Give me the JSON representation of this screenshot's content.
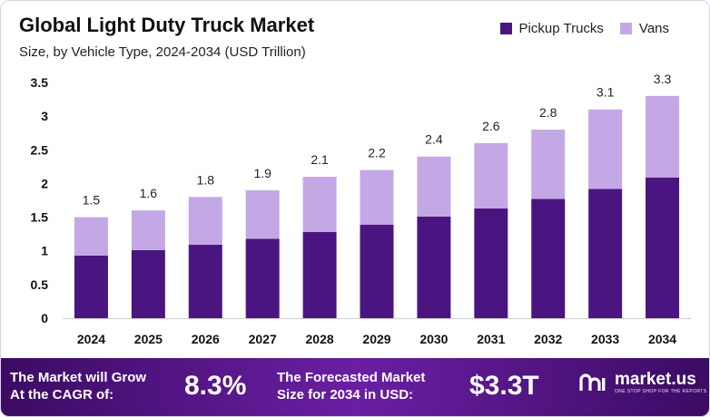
{
  "chart_data": {
    "type": "bar",
    "stacked": true,
    "title": "Global Light Duty Truck Market",
    "subtitle": "Size, by Vehicle Type, 2024-2034 (USD Trillion)",
    "categories": [
      "2024",
      "2025",
      "2026",
      "2027",
      "2028",
      "2029",
      "2030",
      "2031",
      "2032",
      "2033",
      "2034"
    ],
    "series": [
      {
        "name": "Pickup Trucks",
        "color": "#4a1580",
        "values": [
          0.93,
          1.01,
          1.09,
          1.18,
          1.28,
          1.39,
          1.51,
          1.63,
          1.77,
          1.92,
          2.09
        ]
      },
      {
        "name": "Vans",
        "color": "#c4a8e6",
        "values": [
          0.57,
          0.59,
          0.71,
          0.72,
          0.82,
          0.81,
          0.89,
          0.97,
          1.03,
          1.18,
          1.21
        ]
      }
    ],
    "totals": [
      "1.5",
      "1.6",
      "1.8",
      "1.9",
      "2.1",
      "2.2",
      "2.4",
      "2.6",
      "2.8",
      "3.1",
      "3.3"
    ],
    "y_ticks": [
      "0",
      "0.5",
      "1",
      "1.5",
      "2",
      "2.5",
      "3",
      "3.5"
    ],
    "ylim": [
      0,
      3.5
    ],
    "legend_position": "top-right",
    "xlabel": "",
    "ylabel": ""
  },
  "footer": {
    "cagr_label": "The Market will Grow\nAt the CAGR of:",
    "cagr_value": "8.3%",
    "forecast_label": "The Forecasted Market\nSize for 2034 in USD:",
    "forecast_value": "$3.3T",
    "brand_name": "market.us",
    "brand_tagline": "ONE STOP SHOP FOR THE REPORTS"
  }
}
